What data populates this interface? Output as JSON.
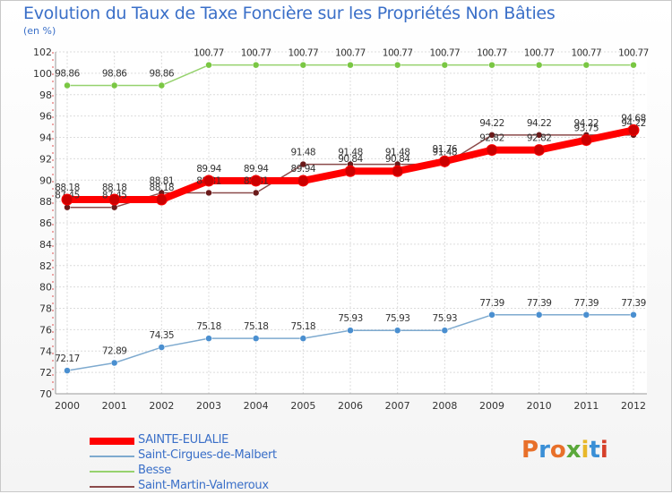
{
  "title": "Evolution du Taux de Taxe Foncière sur les Propriétés Non Bâties",
  "subtitle": "(en %)",
  "brand": "Proxiti",
  "brand_colors": [
    "#e8702a",
    "#3a8fd6",
    "#e8702a",
    "#5aa83a",
    "#e8b82a",
    "#3a8fd6",
    "#d6402a"
  ],
  "chart_data": {
    "type": "line",
    "title": "Evolution du Taux de Taxe Foncière sur les Propriétés Non Bâties",
    "ylabel": "(en %)",
    "xlabel": "",
    "ylim": [
      70,
      102
    ],
    "yticks": [
      70,
      72,
      74,
      76,
      78,
      80,
      82,
      84,
      86,
      88,
      90,
      92,
      94,
      96,
      98,
      100,
      102
    ],
    "ytick_labels": [
      "70",
      "72",
      "74",
      "76",
      "78",
      "80",
      "82",
      "84",
      "86",
      "88",
      "90",
      "92",
      "94",
      "96",
      "98",
      "100",
      "102"
    ],
    "categories": [
      "2000",
      "2001",
      "2002",
      "2003",
      "2004",
      "2005",
      "2006",
      "2007",
      "2008",
      "2009",
      "2010",
      "2011",
      "2012"
    ],
    "grid": true,
    "series": [
      {
        "name": "Besse",
        "color": "#96d26e",
        "marker_color": "#7ac743",
        "values": [
          98.86,
          98.86,
          98.86,
          100.77,
          100.77,
          100.77,
          100.77,
          100.77,
          100.77,
          100.77,
          100.77,
          100.77,
          100.77
        ],
        "labels": [
          "98.86",
          "98.86",
          "98.86",
          "100.77",
          "100.77",
          "100.77",
          "100.77",
          "100.77",
          "100.77",
          "100.77",
          "100.77",
          "100.77",
          "100.77"
        ]
      },
      {
        "name": "Saint-Cirgues-de-Malbert",
        "color": "#7eaacf",
        "marker_color": "#4a8fd0",
        "values": [
          72.17,
          72.89,
          74.35,
          75.18,
          75.18,
          75.18,
          75.93,
          75.93,
          75.93,
          77.39,
          77.39,
          77.39,
          77.39
        ],
        "labels": [
          "72.17",
          "72.89",
          "74.35",
          "75.18",
          "75.18",
          "75.18",
          "75.93",
          "75.93",
          "75.93",
          "77.39",
          "77.39",
          "77.39",
          "77.39"
        ]
      },
      {
        "name": "Saint-Martin-Valmeroux",
        "color": "#8b4a4a",
        "marker_color": "#6b1a1a",
        "values": [
          87.45,
          87.45,
          88.81,
          88.81,
          88.81,
          91.48,
          91.48,
          91.48,
          91.48,
          94.22,
          94.22,
          94.22,
          94.22
        ],
        "labels": [
          "87.45",
          "87.45",
          "88.81",
          "88.81",
          "88.81",
          "91.48",
          "91.48",
          "91.48",
          "91.48",
          "94.22",
          "94.22",
          "94.22",
          "94.22"
        ]
      },
      {
        "name": "SAINTE-EULALIE",
        "color": "#ff0000",
        "marker_color": "#cc0000",
        "values": [
          88.18,
          88.18,
          88.18,
          89.94,
          89.94,
          89.94,
          90.84,
          90.84,
          91.76,
          92.82,
          92.82,
          93.75,
          94.68
        ],
        "labels": [
          "88.18",
          "88.18",
          "88.18",
          "89.94",
          "89.94",
          "89.94",
          "90.84",
          "90.84",
          "91.76",
          "92.82",
          "92.82",
          "93.75",
          "94.68"
        ]
      }
    ],
    "legend": {
      "placement": "bottom-left",
      "entries": [
        "SAINTE-EULALIE",
        "Saint-Cirgues-de-Malbert",
        "Besse",
        "Saint-Martin-Valmeroux"
      ]
    }
  }
}
